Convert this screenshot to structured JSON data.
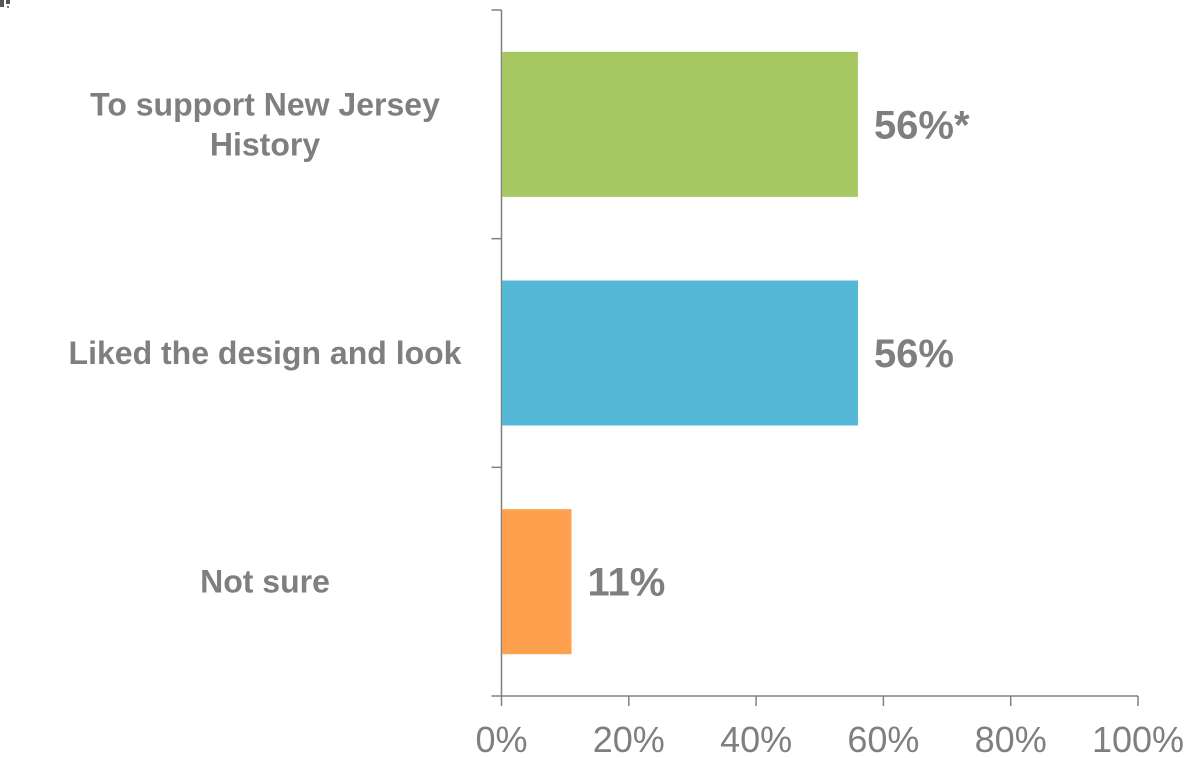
{
  "chart_data": {
    "type": "bar",
    "orientation": "horizontal",
    "categories": [
      "To support New Jersey History",
      "Liked the design and look",
      "Not sure"
    ],
    "category_lines": [
      [
        "To support New Jersey",
        "History"
      ],
      [
        "Liked the design and look"
      ],
      [
        "Not sure"
      ]
    ],
    "values": [
      56,
      56,
      11
    ],
    "data_labels": [
      "56%*",
      "56%",
      "11%"
    ],
    "colors": [
      "#a7c763",
      "#53b7d5",
      "#ffa04f"
    ],
    "xlim": [
      0,
      100
    ],
    "x_ticks": [
      0,
      20,
      40,
      60,
      80,
      100
    ],
    "x_tick_labels": [
      "0%",
      "20%",
      "40%",
      "60%",
      "80%",
      "100%"
    ],
    "title": "",
    "xlabel": "",
    "ylabel": "",
    "grid": false,
    "legend": "none"
  }
}
